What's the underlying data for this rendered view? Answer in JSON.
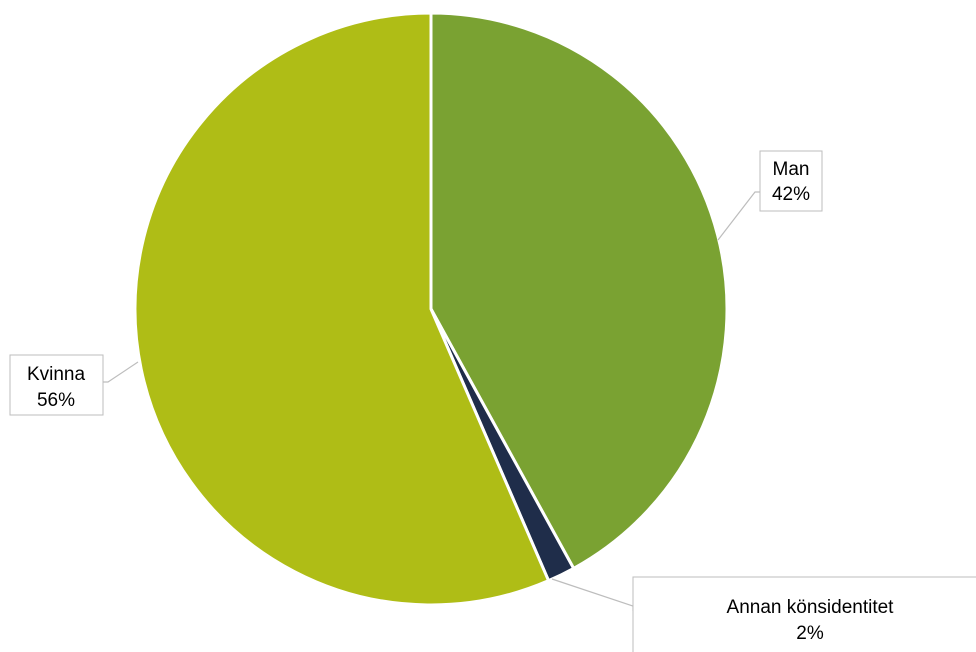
{
  "chart_data": {
    "type": "pie",
    "slices": [
      {
        "label": "Man",
        "value": 42,
        "value_label": "42%",
        "color": "#7aa232"
      },
      {
        "label": "Annan könsidentitet",
        "value": 1.5,
        "value_label": "2%",
        "color": "#1f2d4a"
      },
      {
        "label": "Kvinna",
        "value": 56.5,
        "value_label": "56%",
        "color": "#afbd16"
      }
    ],
    "start_angle_deg": 0,
    "direction": "clockwise",
    "legend": "none",
    "labels": "callouts with leader lines"
  }
}
